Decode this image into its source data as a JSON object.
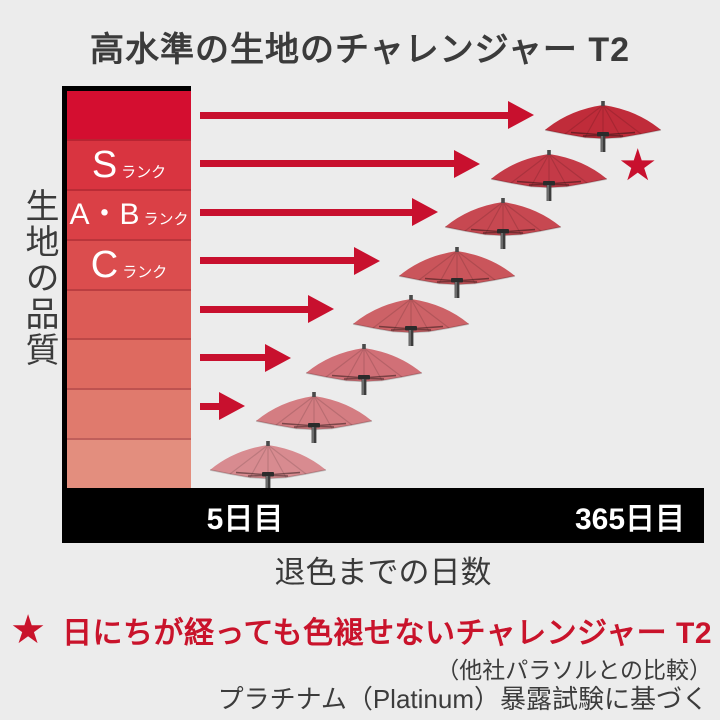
{
  "title": "高水準の生地のチャレンジャー T2",
  "y_axis_label": "生地の品質",
  "x_axis": {
    "tick_start": "5日目",
    "tick_end": "365日目",
    "title": "退色までの日数"
  },
  "rank_suffix": "ランク",
  "legend": {
    "star_glyph": "★",
    "headline": "日にちが経っても色褪せないチャレンジャー T2",
    "note": "（他社パラソルとの比較）",
    "source": "プラチナム（Platinum）暴露試験に基づく"
  },
  "colors": {
    "accent_red": "#c8102e",
    "text_dark": "#3b3b3b",
    "axis_bar_bg": "#000000",
    "background": "#ececec",
    "rank_label_text": "#ffffff"
  },
  "chart_data": {
    "type": "bar",
    "orientation": "horizontal",
    "title": "高水準の生地のチャレンジャー T2",
    "xlabel": "退色までの日数",
    "ylabel": "生地の品質",
    "x_ticks": [
      {
        "label": "5日目",
        "day": 5
      },
      {
        "label": "365日目",
        "day": 365
      }
    ],
    "legend_note": "★ = 日にちが経っても色褪せないチャレンジャー T2（他社パラソルとの比較）",
    "value_note": "arrow/umbrella positions are fractions of the 5日目〜365日目 axis, days estimated from axis",
    "rows": [
      {
        "rank": "",
        "bar_color": "#d40e30",
        "umbrella_color": "#c02c3a",
        "arrow_end_frac": 0.75,
        "umbrella_frac": 0.93,
        "approx_fade_day": 340,
        "star": false
      },
      {
        "rank": "S",
        "bar_color": "#d93440",
        "umbrella_color": "#c43a47",
        "arrow_end_frac": 0.61,
        "umbrella_frac": 0.79,
        "approx_fade_day": 290,
        "star": true,
        "star_frac": 1.02
      },
      {
        "rank": "A・B",
        "bar_color": "#da4046",
        "umbrella_color": "#c74851",
        "arrow_end_frac": 0.5,
        "umbrella_frac": 0.67,
        "approx_fade_day": 245,
        "star": false
      },
      {
        "rank": "C",
        "bar_color": "#db4d4e",
        "umbrella_color": "#ca555b",
        "arrow_end_frac": 0.35,
        "umbrella_frac": 0.55,
        "approx_fade_day": 200,
        "star": false
      },
      {
        "rank": "",
        "bar_color": "#dc5b56",
        "umbrella_color": "#cd6267",
        "arrow_end_frac": 0.23,
        "umbrella_frac": 0.43,
        "approx_fade_day": 160,
        "star": false
      },
      {
        "rank": "",
        "bar_color": "#de6a60",
        "umbrella_color": "#d17077",
        "arrow_end_frac": 0.12,
        "umbrella_frac": 0.31,
        "approx_fade_day": 115,
        "star": false
      },
      {
        "rank": "",
        "bar_color": "#e07a6d",
        "umbrella_color": "#d47d82",
        "arrow_end_frac": 0.0,
        "umbrella_frac": 0.18,
        "approx_fade_day": 70,
        "star": false
      },
      {
        "rank": "",
        "bar_color": "#e38e7e",
        "umbrella_color": "#d88b90",
        "arrow_end_frac": null,
        "umbrella_frac": 0.06,
        "approx_fade_day": 25,
        "star": false
      }
    ]
  }
}
